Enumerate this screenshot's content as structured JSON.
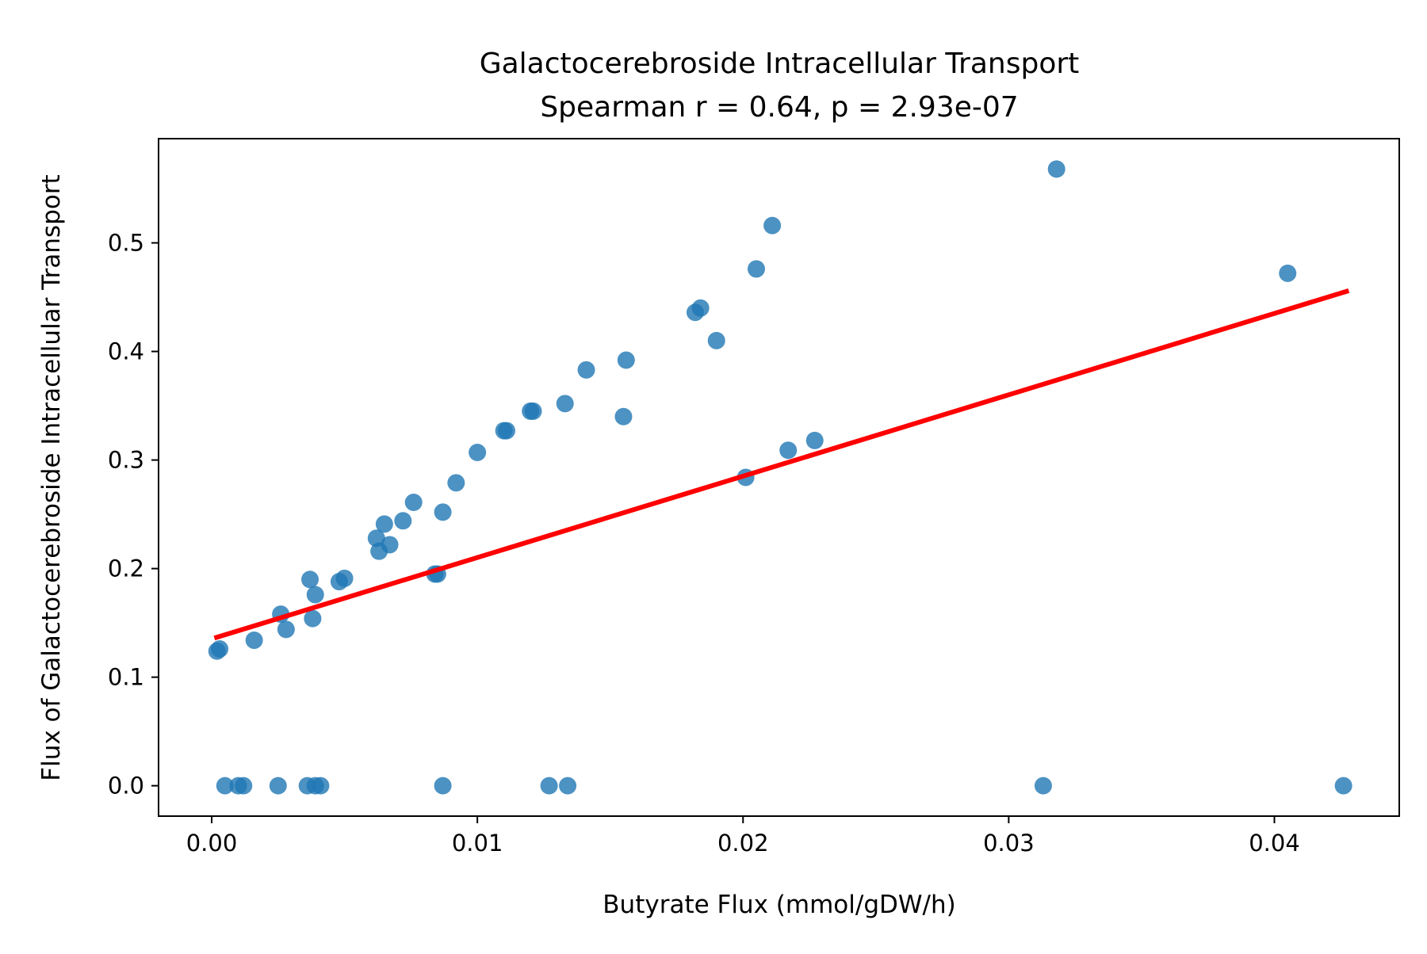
{
  "chart_data": {
    "type": "scatter",
    "title": "Galactocerebroside Intracellular Transport",
    "subtitle": "Spearman r = 0.64, p = 2.93e-07",
    "xlabel": "Butyrate Flux (mmol/gDW/h)",
    "ylabel": "Flux of Galactocerebroside Intracellular Transport",
    "xlim": [
      -0.002,
      0.0447
    ],
    "ylim": [
      -0.028,
      0.596
    ],
    "x_ticks": [
      "0.00",
      "0.01",
      "0.02",
      "0.03",
      "0.04"
    ],
    "y_ticks": [
      "0.0",
      "0.1",
      "0.2",
      "0.3",
      "0.4",
      "0.5"
    ],
    "grid": false,
    "colors": {
      "points": "#1f77b4",
      "trend": "#ff0000"
    },
    "points": [
      [
        0.0002,
        0.124
      ],
      [
        0.0003,
        0.126
      ],
      [
        0.0016,
        0.134
      ],
      [
        0.0026,
        0.158
      ],
      [
        0.0028,
        0.144
      ],
      [
        0.0037,
        0.19
      ],
      [
        0.0038,
        0.154
      ],
      [
        0.0039,
        0.176
      ],
      [
        0.0048,
        0.188
      ],
      [
        0.005,
        0.191
      ],
      [
        0.0062,
        0.228
      ],
      [
        0.0063,
        0.216
      ],
      [
        0.0065,
        0.241
      ],
      [
        0.0067,
        0.222
      ],
      [
        0.0072,
        0.244
      ],
      [
        0.0076,
        0.261
      ],
      [
        0.0084,
        0.195
      ],
      [
        0.0085,
        0.195
      ],
      [
        0.0087,
        0.252
      ],
      [
        0.0092,
        0.279
      ],
      [
        0.01,
        0.307
      ],
      [
        0.011,
        0.327
      ],
      [
        0.0111,
        0.327
      ],
      [
        0.012,
        0.345
      ],
      [
        0.0121,
        0.345
      ],
      [
        0.0133,
        0.352
      ],
      [
        0.0141,
        0.383
      ],
      [
        0.0155,
        0.34
      ],
      [
        0.0156,
        0.392
      ],
      [
        0.0182,
        0.436
      ],
      [
        0.0184,
        0.44
      ],
      [
        0.019,
        0.41
      ],
      [
        0.0201,
        0.284
      ],
      [
        0.0205,
        0.476
      ],
      [
        0.0211,
        0.516
      ],
      [
        0.0217,
        0.309
      ],
      [
        0.0227,
        0.318
      ],
      [
        0.0318,
        0.568
      ],
      [
        0.0405,
        0.472
      ],
      [
        0.0005,
        0.0
      ],
      [
        0.001,
        0.0
      ],
      [
        0.0012,
        0.0
      ],
      [
        0.0025,
        0.0
      ],
      [
        0.0036,
        0.0
      ],
      [
        0.0039,
        0.0
      ],
      [
        0.0041,
        0.0
      ],
      [
        0.0087,
        0.0
      ],
      [
        0.0127,
        0.0
      ],
      [
        0.0134,
        0.0
      ],
      [
        0.0313,
        0.0
      ],
      [
        0.0426,
        0.0
      ]
    ],
    "trend_line": {
      "x": [
        0.0001,
        0.0428
      ],
      "y": [
        0.136,
        0.456
      ]
    }
  }
}
